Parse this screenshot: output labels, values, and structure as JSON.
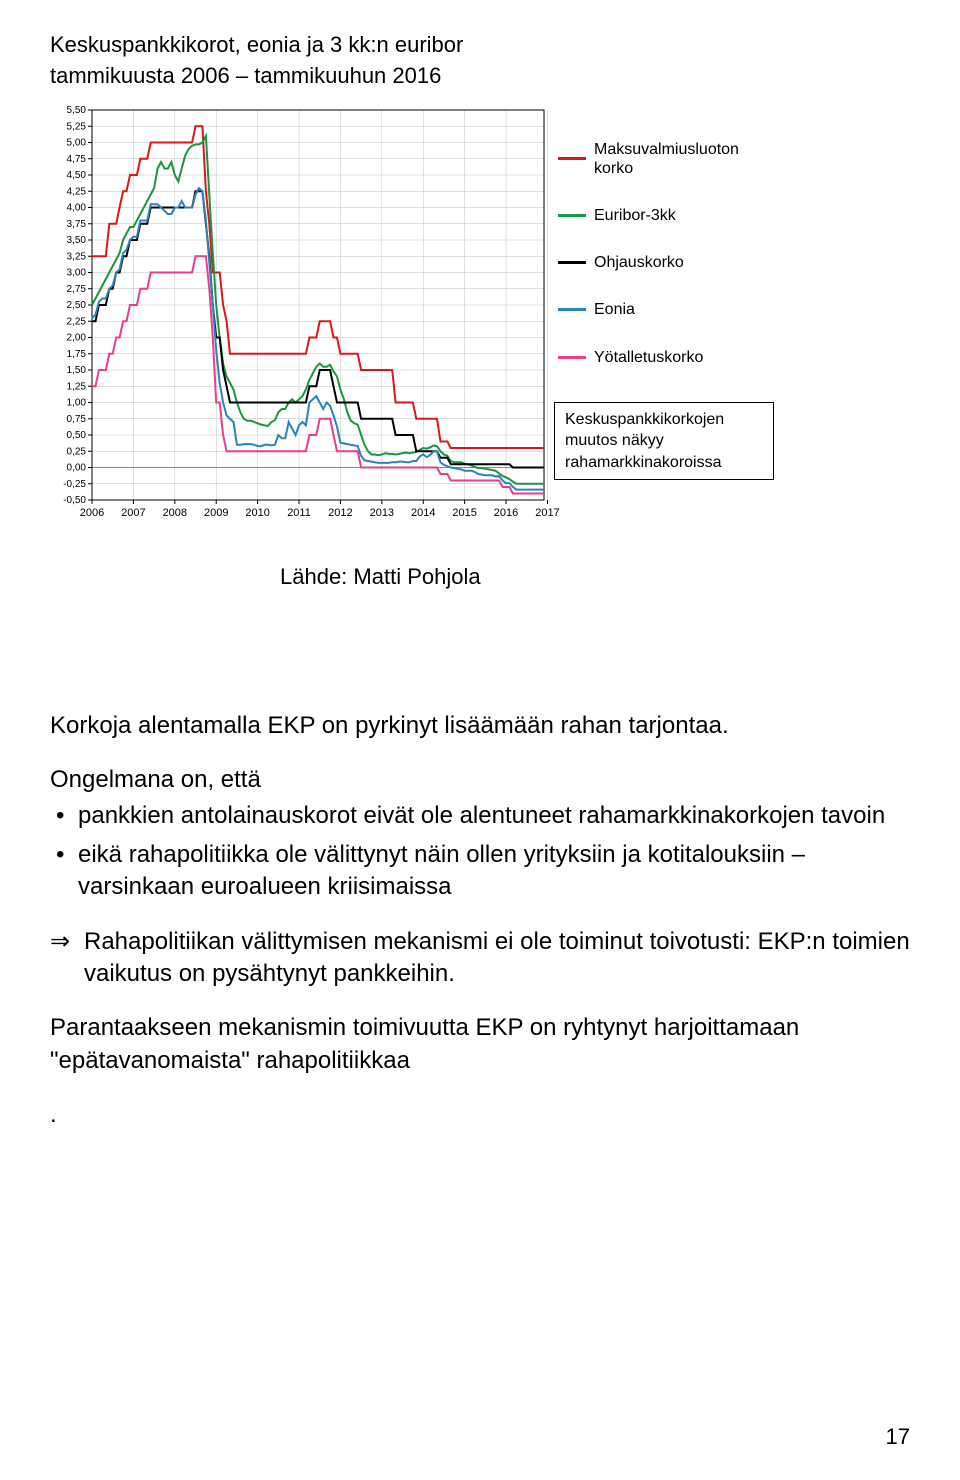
{
  "title_line1": "Keskuspankkikorot, eonia ja 3 kk:n euribor",
  "title_line2": "tammikuusta 2006 – tammikuuhun 2016",
  "source_label": "Lähde: Matti Pohjola",
  "chart": {
    "type": "line",
    "background_color": "#ffffff",
    "grid_color": "#bfbfbf",
    "axis_color": "#000000",
    "ylim": [
      -0.5,
      5.5
    ],
    "ytick_step": 0.25,
    "yticks": [
      "-0,50",
      "-0,25",
      "0,00",
      "0,25",
      "0,50",
      "0,75",
      "1,00",
      "1,25",
      "1,50",
      "1,75",
      "2,00",
      "2,25",
      "2,50",
      "2,75",
      "3,00",
      "3,25",
      "3,50",
      "3,75",
      "4,00",
      "4,25",
      "4,50",
      "4,75",
      "5,00",
      "5,25",
      "5,50"
    ],
    "years": [
      "2006",
      "2007",
      "2008",
      "2009",
      "2010",
      "2011",
      "2012",
      "2013",
      "2014",
      "2015",
      "2016",
      "2017"
    ],
    "x_count": 132,
    "series": [
      {
        "name": "Maksuvalmiusluoton korko",
        "color": "#d7191c",
        "width": 2,
        "data": [
          3.25,
          3.25,
          3.25,
          3.25,
          3.25,
          3.75,
          3.75,
          3.75,
          4.0,
          4.25,
          4.25,
          4.5,
          4.5,
          4.5,
          4.75,
          4.75,
          4.75,
          5.0,
          5.0,
          5.0,
          5.0,
          5.0,
          5.0,
          5.0,
          5.0,
          5.0,
          5.0,
          5.0,
          5.0,
          5.0,
          5.25,
          5.25,
          5.25,
          4.25,
          3.75,
          3.0,
          3.0,
          3.0,
          2.5,
          2.25,
          1.75,
          1.75,
          1.75,
          1.75,
          1.75,
          1.75,
          1.75,
          1.75,
          1.75,
          1.75,
          1.75,
          1.75,
          1.75,
          1.75,
          1.75,
          1.75,
          1.75,
          1.75,
          1.75,
          1.75,
          1.75,
          1.75,
          1.75,
          2.0,
          2.0,
          2.0,
          2.25,
          2.25,
          2.25,
          2.25,
          2.0,
          2.0,
          1.75,
          1.75,
          1.75,
          1.75,
          1.75,
          1.75,
          1.5,
          1.5,
          1.5,
          1.5,
          1.5,
          1.5,
          1.5,
          1.5,
          1.5,
          1.5,
          1.0,
          1.0,
          1.0,
          1.0,
          1.0,
          1.0,
          0.75,
          0.75,
          0.75,
          0.75,
          0.75,
          0.75,
          0.75,
          0.4,
          0.4,
          0.4,
          0.3,
          0.3,
          0.3,
          0.3,
          0.3,
          0.3,
          0.3,
          0.3,
          0.3,
          0.3,
          0.3,
          0.3,
          0.3,
          0.3,
          0.3,
          0.3,
          0.3,
          0.3,
          0.3,
          0.3,
          0.3,
          0.3,
          0.3,
          0.3,
          0.3,
          0.3,
          0.3,
          0.3
        ]
      },
      {
        "name": "Euribor-3kk",
        "color": "#1a9641",
        "width": 2,
        "data": [
          2.5,
          2.6,
          2.7,
          2.8,
          2.9,
          3.0,
          3.1,
          3.2,
          3.3,
          3.5,
          3.6,
          3.7,
          3.7,
          3.8,
          3.9,
          4.0,
          4.1,
          4.2,
          4.3,
          4.6,
          4.7,
          4.6,
          4.6,
          4.7,
          4.5,
          4.4,
          4.6,
          4.8,
          4.9,
          4.95,
          4.97,
          4.97,
          5.0,
          5.1,
          4.2,
          3.3,
          2.5,
          2.0,
          1.6,
          1.4,
          1.3,
          1.2,
          1.0,
          0.85,
          0.75,
          0.72,
          0.72,
          0.7,
          0.68,
          0.66,
          0.65,
          0.64,
          0.7,
          0.73,
          0.85,
          0.9,
          0.9,
          1.0,
          1.05,
          1.0,
          1.05,
          1.1,
          1.2,
          1.35,
          1.45,
          1.55,
          1.6,
          1.55,
          1.55,
          1.58,
          1.48,
          1.4,
          1.2,
          1.05,
          0.85,
          0.72,
          0.68,
          0.66,
          0.5,
          0.35,
          0.25,
          0.2,
          0.2,
          0.19,
          0.2,
          0.22,
          0.21,
          0.21,
          0.2,
          0.21,
          0.22,
          0.23,
          0.22,
          0.23,
          0.24,
          0.27,
          0.3,
          0.29,
          0.31,
          0.34,
          0.33,
          0.25,
          0.2,
          0.18,
          0.1,
          0.08,
          0.08,
          0.08,
          0.06,
          0.05,
          0.03,
          0.01,
          -0.01,
          -0.01,
          -0.02,
          -0.03,
          -0.04,
          -0.05,
          -0.09,
          -0.13,
          -0.15,
          -0.18,
          -0.22,
          -0.25,
          -0.25,
          -0.25,
          -0.25,
          -0.25,
          -0.25,
          -0.25,
          -0.25,
          -0.25
        ]
      },
      {
        "name": "Ohjauskorko",
        "color": "#000000",
        "width": 2,
        "data": [
          2.25,
          2.25,
          2.5,
          2.5,
          2.5,
          2.75,
          2.75,
          3.0,
          3.0,
          3.25,
          3.25,
          3.5,
          3.5,
          3.5,
          3.75,
          3.75,
          3.75,
          4.0,
          4.0,
          4.0,
          4.0,
          4.0,
          4.0,
          4.0,
          4.0,
          4.0,
          4.0,
          4.0,
          4.0,
          4.0,
          4.25,
          4.25,
          4.25,
          3.75,
          3.25,
          2.5,
          2.0,
          2.0,
          1.5,
          1.25,
          1.0,
          1.0,
          1.0,
          1.0,
          1.0,
          1.0,
          1.0,
          1.0,
          1.0,
          1.0,
          1.0,
          1.0,
          1.0,
          1.0,
          1.0,
          1.0,
          1.0,
          1.0,
          1.0,
          1.0,
          1.0,
          1.0,
          1.0,
          1.25,
          1.25,
          1.25,
          1.5,
          1.5,
          1.5,
          1.5,
          1.25,
          1.0,
          1.0,
          1.0,
          1.0,
          1.0,
          1.0,
          1.0,
          0.75,
          0.75,
          0.75,
          0.75,
          0.75,
          0.75,
          0.75,
          0.75,
          0.75,
          0.75,
          0.5,
          0.5,
          0.5,
          0.5,
          0.5,
          0.5,
          0.25,
          0.25,
          0.25,
          0.25,
          0.25,
          0.25,
          0.25,
          0.15,
          0.15,
          0.15,
          0.05,
          0.05,
          0.05,
          0.05,
          0.05,
          0.05,
          0.05,
          0.05,
          0.05,
          0.05,
          0.05,
          0.05,
          0.05,
          0.05,
          0.05,
          0.05,
          0.05,
          0.05,
          0.0,
          0.0,
          0.0,
          0.0,
          0.0,
          0.0,
          0.0,
          0.0,
          0.0,
          0.0
        ]
      },
      {
        "name": "Eonia",
        "color": "#2b83ba",
        "width": 2,
        "data": [
          2.3,
          2.35,
          2.55,
          2.6,
          2.6,
          2.75,
          2.8,
          3.0,
          3.05,
          3.3,
          3.35,
          3.5,
          3.55,
          3.55,
          3.8,
          3.8,
          3.8,
          4.05,
          4.05,
          4.05,
          4.0,
          3.95,
          3.9,
          3.9,
          4.0,
          4.0,
          4.1,
          4.0,
          4.0,
          4.0,
          4.2,
          4.3,
          4.25,
          3.8,
          3.15,
          2.5,
          1.8,
          1.3,
          1.0,
          0.8,
          0.75,
          0.7,
          0.35,
          0.35,
          0.36,
          0.36,
          0.36,
          0.35,
          0.33,
          0.33,
          0.35,
          0.35,
          0.34,
          0.35,
          0.5,
          0.45,
          0.45,
          0.7,
          0.6,
          0.5,
          0.65,
          0.7,
          0.65,
          1.0,
          1.05,
          1.1,
          1.0,
          0.9,
          1.0,
          0.95,
          0.8,
          0.63,
          0.38,
          0.37,
          0.36,
          0.35,
          0.34,
          0.33,
          0.18,
          0.11,
          0.1,
          0.09,
          0.08,
          0.07,
          0.07,
          0.07,
          0.07,
          0.08,
          0.08,
          0.09,
          0.09,
          0.08,
          0.08,
          0.1,
          0.1,
          0.17,
          0.2,
          0.16,
          0.19,
          0.25,
          0.25,
          0.08,
          0.04,
          0.02,
          0.0,
          -0.01,
          -0.02,
          -0.03,
          -0.05,
          -0.05,
          -0.05,
          -0.07,
          -0.1,
          -0.11,
          -0.12,
          -0.12,
          -0.12,
          -0.14,
          -0.13,
          -0.2,
          -0.24,
          -0.24,
          -0.3,
          -0.34,
          -0.34,
          -0.34,
          -0.34,
          -0.34,
          -0.34,
          -0.34,
          -0.34,
          -0.34
        ]
      },
      {
        "name": "Yötalletuskorko",
        "color": "#e83e8c",
        "width": 2,
        "data": [
          1.25,
          1.25,
          1.5,
          1.5,
          1.5,
          1.75,
          1.75,
          2.0,
          2.0,
          2.25,
          2.25,
          2.5,
          2.5,
          2.5,
          2.75,
          2.75,
          2.75,
          3.0,
          3.0,
          3.0,
          3.0,
          3.0,
          3.0,
          3.0,
          3.0,
          3.0,
          3.0,
          3.0,
          3.0,
          3.0,
          3.25,
          3.25,
          3.25,
          3.25,
          2.75,
          2.0,
          1.0,
          1.0,
          0.5,
          0.25,
          0.25,
          0.25,
          0.25,
          0.25,
          0.25,
          0.25,
          0.25,
          0.25,
          0.25,
          0.25,
          0.25,
          0.25,
          0.25,
          0.25,
          0.25,
          0.25,
          0.25,
          0.25,
          0.25,
          0.25,
          0.25,
          0.25,
          0.25,
          0.5,
          0.5,
          0.5,
          0.75,
          0.75,
          0.75,
          0.75,
          0.5,
          0.25,
          0.25,
          0.25,
          0.25,
          0.25,
          0.25,
          0.25,
          0.0,
          0.0,
          0.0,
          0.0,
          0.0,
          0.0,
          0.0,
          0.0,
          0.0,
          0.0,
          0.0,
          0.0,
          0.0,
          0.0,
          0.0,
          0.0,
          0.0,
          0.0,
          0.0,
          0.0,
          0.0,
          0.0,
          0.0,
          -0.1,
          -0.1,
          -0.1,
          -0.2,
          -0.2,
          -0.2,
          -0.2,
          -0.2,
          -0.2,
          -0.2,
          -0.2,
          -0.2,
          -0.2,
          -0.2,
          -0.2,
          -0.2,
          -0.2,
          -0.2,
          -0.3,
          -0.3,
          -0.3,
          -0.4,
          -0.4,
          -0.4,
          -0.4,
          -0.4,
          -0.4,
          -0.4,
          -0.4,
          -0.4,
          -0.4
        ]
      }
    ],
    "note_line1": "Keskuspankkikorkojen",
    "note_line2": "muutos näkyy",
    "note_line3": "rahamarkkinakoroissa"
  },
  "body": {
    "p1": "Korkoja alentamalla EKP on pyrkinyt lisäämään rahan tarjontaa.",
    "p2_intro": "Ongelmana on, että",
    "b1": "pankkien antolainauskorot eivät ole alentuneet rahamarkkinakorkojen tavoin",
    "b2": "eikä rahapolitiikka ole välittynyt näin ollen yrityksiin ja kotitalouksiin – varsinkaan euroalueen kriisimaissa",
    "arrow": "⇒",
    "arrow_text": "Rahapolitiikan välittymisen mekanismi ei ole toiminut toivotusti: EKP:n toimien vaikutus on pysähtynyt pankkeihin.",
    "p3": "Parantaakseen mekanismin toimivuutta EKP on ryhtynyt harjoittamaan \"epätavanomaista\" rahapolitiikkaa",
    "p4": "."
  },
  "page_number": "17"
}
